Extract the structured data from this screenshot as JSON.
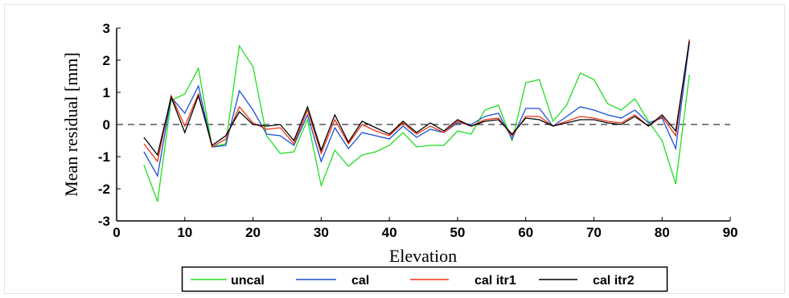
{
  "chart_data": {
    "type": "line",
    "title": "",
    "xlabel": "Elevation",
    "ylabel": "Mean residual [mm]",
    "xlim": [
      0,
      90
    ],
    "ylim": [
      -3,
      3
    ],
    "xticks": [
      0,
      10,
      20,
      30,
      40,
      50,
      60,
      70,
      80,
      90
    ],
    "yticks": [
      -3,
      -2,
      -1,
      0,
      1,
      2,
      3
    ],
    "grid": false,
    "reference_line": {
      "y": 0,
      "style": "dashed",
      "color": "#000000"
    },
    "legend_position": "bottom-center",
    "x": [
      4,
      6,
      8,
      10,
      12,
      14,
      16,
      18,
      20,
      22,
      24,
      26,
      28,
      30,
      32,
      34,
      36,
      38,
      40,
      42,
      44,
      46,
      48,
      50,
      52,
      54,
      56,
      58,
      60,
      62,
      64,
      66,
      68,
      70,
      72,
      74,
      76,
      78,
      80,
      82,
      84
    ],
    "series": [
      {
        "name": "uncal",
        "color": "#22dd22",
        "values": [
          -1.25,
          -2.4,
          0.75,
          0.95,
          1.75,
          -0.7,
          -0.6,
          2.45,
          1.8,
          -0.35,
          -0.9,
          -0.85,
          0.15,
          -1.9,
          -0.8,
          -1.3,
          -0.95,
          -0.85,
          -0.65,
          -0.25,
          -0.7,
          -0.65,
          -0.65,
          -0.2,
          -0.3,
          0.45,
          0.6,
          -0.5,
          1.3,
          1.4,
          0.1,
          0.6,
          1.6,
          1.4,
          0.65,
          0.45,
          0.8,
          0.1,
          -0.5,
          -1.85,
          1.55
        ]
      },
      {
        "name": "cal",
        "color": "#1a4fd6",
        "values": [
          -0.85,
          -1.6,
          0.85,
          0.35,
          1.2,
          -0.7,
          -0.65,
          1.05,
          0.45,
          -0.3,
          -0.35,
          -0.65,
          0.3,
          -1.15,
          -0.1,
          -0.75,
          -0.25,
          -0.35,
          -0.45,
          -0.05,
          -0.4,
          -0.15,
          -0.25,
          0.05,
          0.0,
          0.25,
          0.35,
          -0.45,
          0.5,
          0.5,
          -0.05,
          0.25,
          0.55,
          0.45,
          0.3,
          0.2,
          0.45,
          0.05,
          0.2,
          -0.75,
          2.55
        ]
      },
      {
        "name": "cal itr1",
        "color": "#ee3311",
        "values": [
          -0.6,
          -1.15,
          0.9,
          -0.05,
          0.95,
          -0.7,
          -0.45,
          0.55,
          0.05,
          -0.15,
          -0.1,
          -0.6,
          0.45,
          -0.9,
          0.15,
          -0.6,
          0.0,
          -0.2,
          -0.35,
          0.05,
          -0.3,
          -0.05,
          -0.25,
          0.1,
          -0.05,
          0.15,
          0.2,
          -0.35,
          0.25,
          0.25,
          -0.05,
          0.1,
          0.25,
          0.2,
          0.1,
          0.05,
          0.3,
          -0.05,
          0.25,
          -0.35,
          2.65
        ]
      },
      {
        "name": "cal itr2",
        "color": "#000000",
        "values": [
          -0.4,
          -0.95,
          0.85,
          -0.25,
          0.9,
          -0.65,
          -0.35,
          0.4,
          0.0,
          -0.05,
          0.0,
          -0.5,
          0.55,
          -0.8,
          0.3,
          -0.55,
          0.1,
          -0.1,
          -0.3,
          0.1,
          -0.25,
          0.05,
          -0.2,
          0.15,
          -0.05,
          0.1,
          0.15,
          -0.3,
          0.2,
          0.15,
          -0.05,
          0.05,
          0.15,
          0.15,
          0.05,
          0.0,
          0.25,
          -0.05,
          0.3,
          -0.2,
          2.6
        ]
      }
    ]
  }
}
